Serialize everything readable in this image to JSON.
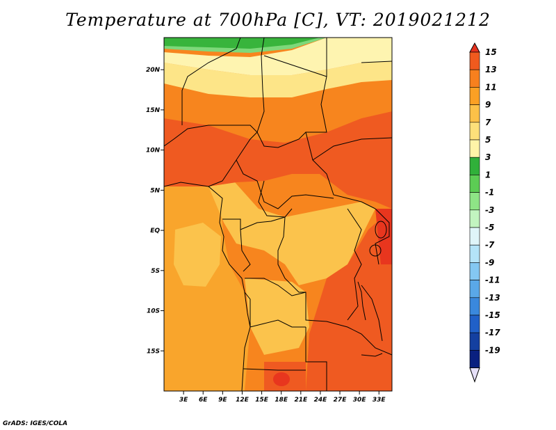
{
  "title": "Temperature at 700hPa [C], VT: 2019021212",
  "credit": "GrADS: IGES/COLA",
  "map": {
    "variable": "Temperature at 700hPa",
    "unit": "C",
    "valid_time": "2019021212",
    "lon_range": [
      0,
      35
    ],
    "lat_range": [
      -20,
      24
    ],
    "lon_ticks": [
      {
        "value": 3,
        "label": "3E"
      },
      {
        "value": 6,
        "label": "6E"
      },
      {
        "value": 9,
        "label": "9E"
      },
      {
        "value": 12,
        "label": "12E"
      },
      {
        "value": 15,
        "label": "15E"
      },
      {
        "value": 18,
        "label": "18E"
      },
      {
        "value": 21,
        "label": "21E"
      },
      {
        "value": 24,
        "label": "24E"
      },
      {
        "value": 27,
        "label": "27E"
      },
      {
        "value": 30,
        "label": "30E"
      },
      {
        "value": 33,
        "label": "33E"
      }
    ],
    "lat_ticks": [
      {
        "value": 20,
        "label": "20N"
      },
      {
        "value": 15,
        "label": "15N"
      },
      {
        "value": 10,
        "label": "10N"
      },
      {
        "value": 5,
        "label": "5N"
      },
      {
        "value": 0,
        "label": "EQ"
      },
      {
        "value": -5,
        "label": "5S"
      },
      {
        "value": -10,
        "label": "10S"
      },
      {
        "value": -15,
        "label": "15S"
      }
    ]
  },
  "colorbar": {
    "labels": [
      "15",
      "13",
      "11",
      "9",
      "7",
      "5",
      "3",
      "1",
      "-1",
      "-3",
      "-5",
      "-7",
      "-9",
      "-11",
      "-13",
      "-15",
      "-17",
      "-19"
    ],
    "colors": [
      "#e6321e",
      "#f05a1e",
      "#f7801e",
      "#fba024",
      "#fcc148",
      "#fde07a",
      "#fef4a8",
      "#30b03a",
      "#5ccc54",
      "#8ee486",
      "#c2f4c0",
      "#dff5f9",
      "#b4e4f8",
      "#84c8f2",
      "#5aa8e8",
      "#3a88dd",
      "#2060c8",
      "#1440a0",
      "#0a2080",
      "#e6e0f8"
    ]
  },
  "colors": {
    "ocean_atlantic": "#f9a52c",
    "coast_band": "#fbc34c",
    "mid_band": "#f7851e",
    "warm_band": "#ef5a21",
    "hot_spot": "#e8361e",
    "north_green": "#38b43c",
    "north_light_green": "#7ed87a",
    "north_pale": "#fef4b0",
    "north_yellow": "#fde588",
    "outline": "#000000"
  }
}
